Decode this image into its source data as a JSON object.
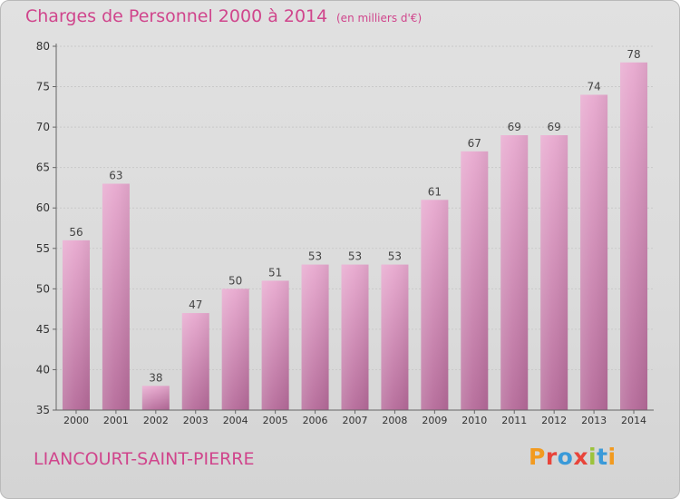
{
  "header": {
    "title": "Charges de Personnel 2000 à 2014",
    "subtitle": "(en milliers d'€)"
  },
  "footer": {
    "commune": "LIANCOURT-SAINT-PIERRE",
    "brand": "Proxiti",
    "brand_colors": [
      "#f29a1f",
      "#e8443a",
      "#3a9ad9",
      "#e8443a",
      "#9cc33b",
      "#3a9ad9",
      "#f29a1f"
    ]
  },
  "colors": {
    "bar_top": "#e8a9cf",
    "bar_bottom": "#b56a99",
    "accent": "#d0458c",
    "axis": "#666666",
    "grid": "#c9c9c9"
  },
  "chart_data": {
    "type": "bar",
    "title": "Charges de Personnel 2000 à 2014",
    "subtitle": "(en milliers d'€)",
    "categories": [
      "2000",
      "2001",
      "2002",
      "2003",
      "2004",
      "2005",
      "2006",
      "2007",
      "2008",
      "2009",
      "2010",
      "2011",
      "2012",
      "2013",
      "2014"
    ],
    "values": [
      56,
      63,
      38,
      47,
      50,
      51,
      53,
      53,
      53,
      61,
      67,
      69,
      69,
      74,
      78
    ],
    "ylim": [
      35,
      80
    ],
    "yticks": [
      35,
      40,
      45,
      50,
      55,
      60,
      65,
      70,
      75,
      80
    ],
    "grid": "horizontal"
  }
}
